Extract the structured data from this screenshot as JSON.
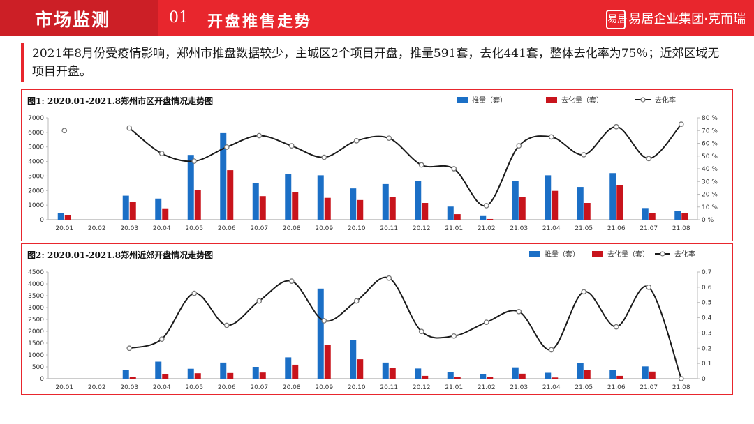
{
  "header": {
    "section": "市场监测",
    "number": "01",
    "title": "开盘推售走势",
    "brand": "易居企业集团·克而瑞",
    "brand_logo": "易居"
  },
  "summary": "2021年8月份受疫情影响，郑州市推盘数据较少，主城区2个项目开盘，推量591套，去化441套，整体去化率为75％；近郊区域无项目开盘。",
  "colors": {
    "supply": "#1b6fc6",
    "sold": "#c8141c",
    "rate": "#1a1a1a",
    "accent": "#e8262d"
  },
  "chart_data": [
    {
      "type": "bar",
      "title": "图1:  2020.01-2021.8郑州市区开盘情况走势图",
      "categories": [
        "20.01",
        "20.02",
        "20.03",
        "20.04",
        "20.05",
        "20.06",
        "20.07",
        "20.08",
        "20.09",
        "20.10",
        "20.11",
        "20.12",
        "21.01",
        "21.02",
        "21.03",
        "21.04",
        "21.05",
        "21.06",
        "21.07",
        "21.08"
      ],
      "series": [
        {
          "name": "推量（套）",
          "kind": "bar",
          "axis": "left",
          "values": [
            450,
            0,
            1650,
            1450,
            4450,
            5950,
            2500,
            3150,
            3050,
            2150,
            2450,
            2650,
            900,
            250,
            2650,
            3050,
            2250,
            3200,
            800,
            591
          ]
        },
        {
          "name": "去化量（套）",
          "kind": "bar",
          "axis": "left",
          "values": [
            330,
            0,
            1200,
            780,
            2050,
            3400,
            1620,
            1870,
            1500,
            1350,
            1550,
            1150,
            380,
            50,
            1550,
            1980,
            1150,
            2350,
            450,
            441
          ]
        },
        {
          "name": "去化率",
          "kind": "line",
          "axis": "right",
          "values": [
            0.7,
            null,
            0.72,
            0.52,
            0.46,
            0.57,
            0.66,
            0.58,
            0.49,
            0.62,
            0.64,
            0.43,
            0.4,
            0.11,
            0.58,
            0.65,
            0.51,
            0.73,
            0.48,
            0.75
          ]
        }
      ],
      "ylim": [
        0,
        7000
      ],
      "yticks": [
        "0",
        "1000",
        "2000",
        "3000",
        "4000",
        "5000",
        "6000",
        "7000"
      ],
      "y2lim": [
        0,
        0.8
      ],
      "y2ticks": [
        "0 %",
        "10 %",
        "20 %",
        "30 %",
        "40 %",
        "50 %",
        "60 %",
        "70 %",
        "80 %"
      ],
      "legend": "top-right",
      "grid": false
    },
    {
      "type": "bar",
      "title": "图2:  2020.01-2021.8郑州近郊开盘情况走势图",
      "categories": [
        "20.01",
        "20.02",
        "20.03",
        "20.04",
        "20.05",
        "20.06",
        "20.07",
        "20.08",
        "20.09",
        "20.10",
        "20.11",
        "20.12",
        "21.01",
        "21.02",
        "21.03",
        "21.04",
        "21.05",
        "21.06",
        "21.07",
        "21.08"
      ],
      "series": [
        {
          "name": "推量（套）",
          "kind": "bar",
          "axis": "left",
          "values": [
            0,
            0,
            380,
            720,
            420,
            680,
            500,
            900,
            3800,
            1620,
            680,
            430,
            290,
            190,
            480,
            250,
            650,
            380,
            520,
            0
          ]
        },
        {
          "name": "去化量（套）",
          "kind": "bar",
          "axis": "left",
          "values": [
            0,
            0,
            60,
            180,
            230,
            240,
            260,
            590,
            1440,
            820,
            460,
            120,
            80,
            60,
            210,
            50,
            370,
            120,
            300,
            0
          ]
        },
        {
          "name": "去化率",
          "kind": "line",
          "axis": "right",
          "values": [
            null,
            null,
            0.2,
            0.26,
            0.56,
            0.35,
            0.51,
            0.64,
            0.38,
            0.51,
            0.66,
            0.31,
            0.28,
            0.37,
            0.44,
            0.19,
            0.57,
            0.34,
            0.6,
            0.0
          ]
        }
      ],
      "ylim": [
        0,
        4500
      ],
      "yticks": [
        "0",
        "500",
        "1000",
        "1500",
        "2000",
        "2500",
        "3000",
        "3500",
        "4000",
        "4500"
      ],
      "y2lim": [
        0,
        0.7
      ],
      "y2ticks": [
        "0",
        "0.1",
        "0.2",
        "0.3",
        "0.4",
        "0.5",
        "0.6",
        "0.7"
      ],
      "legend": "top-right",
      "grid": false
    }
  ]
}
